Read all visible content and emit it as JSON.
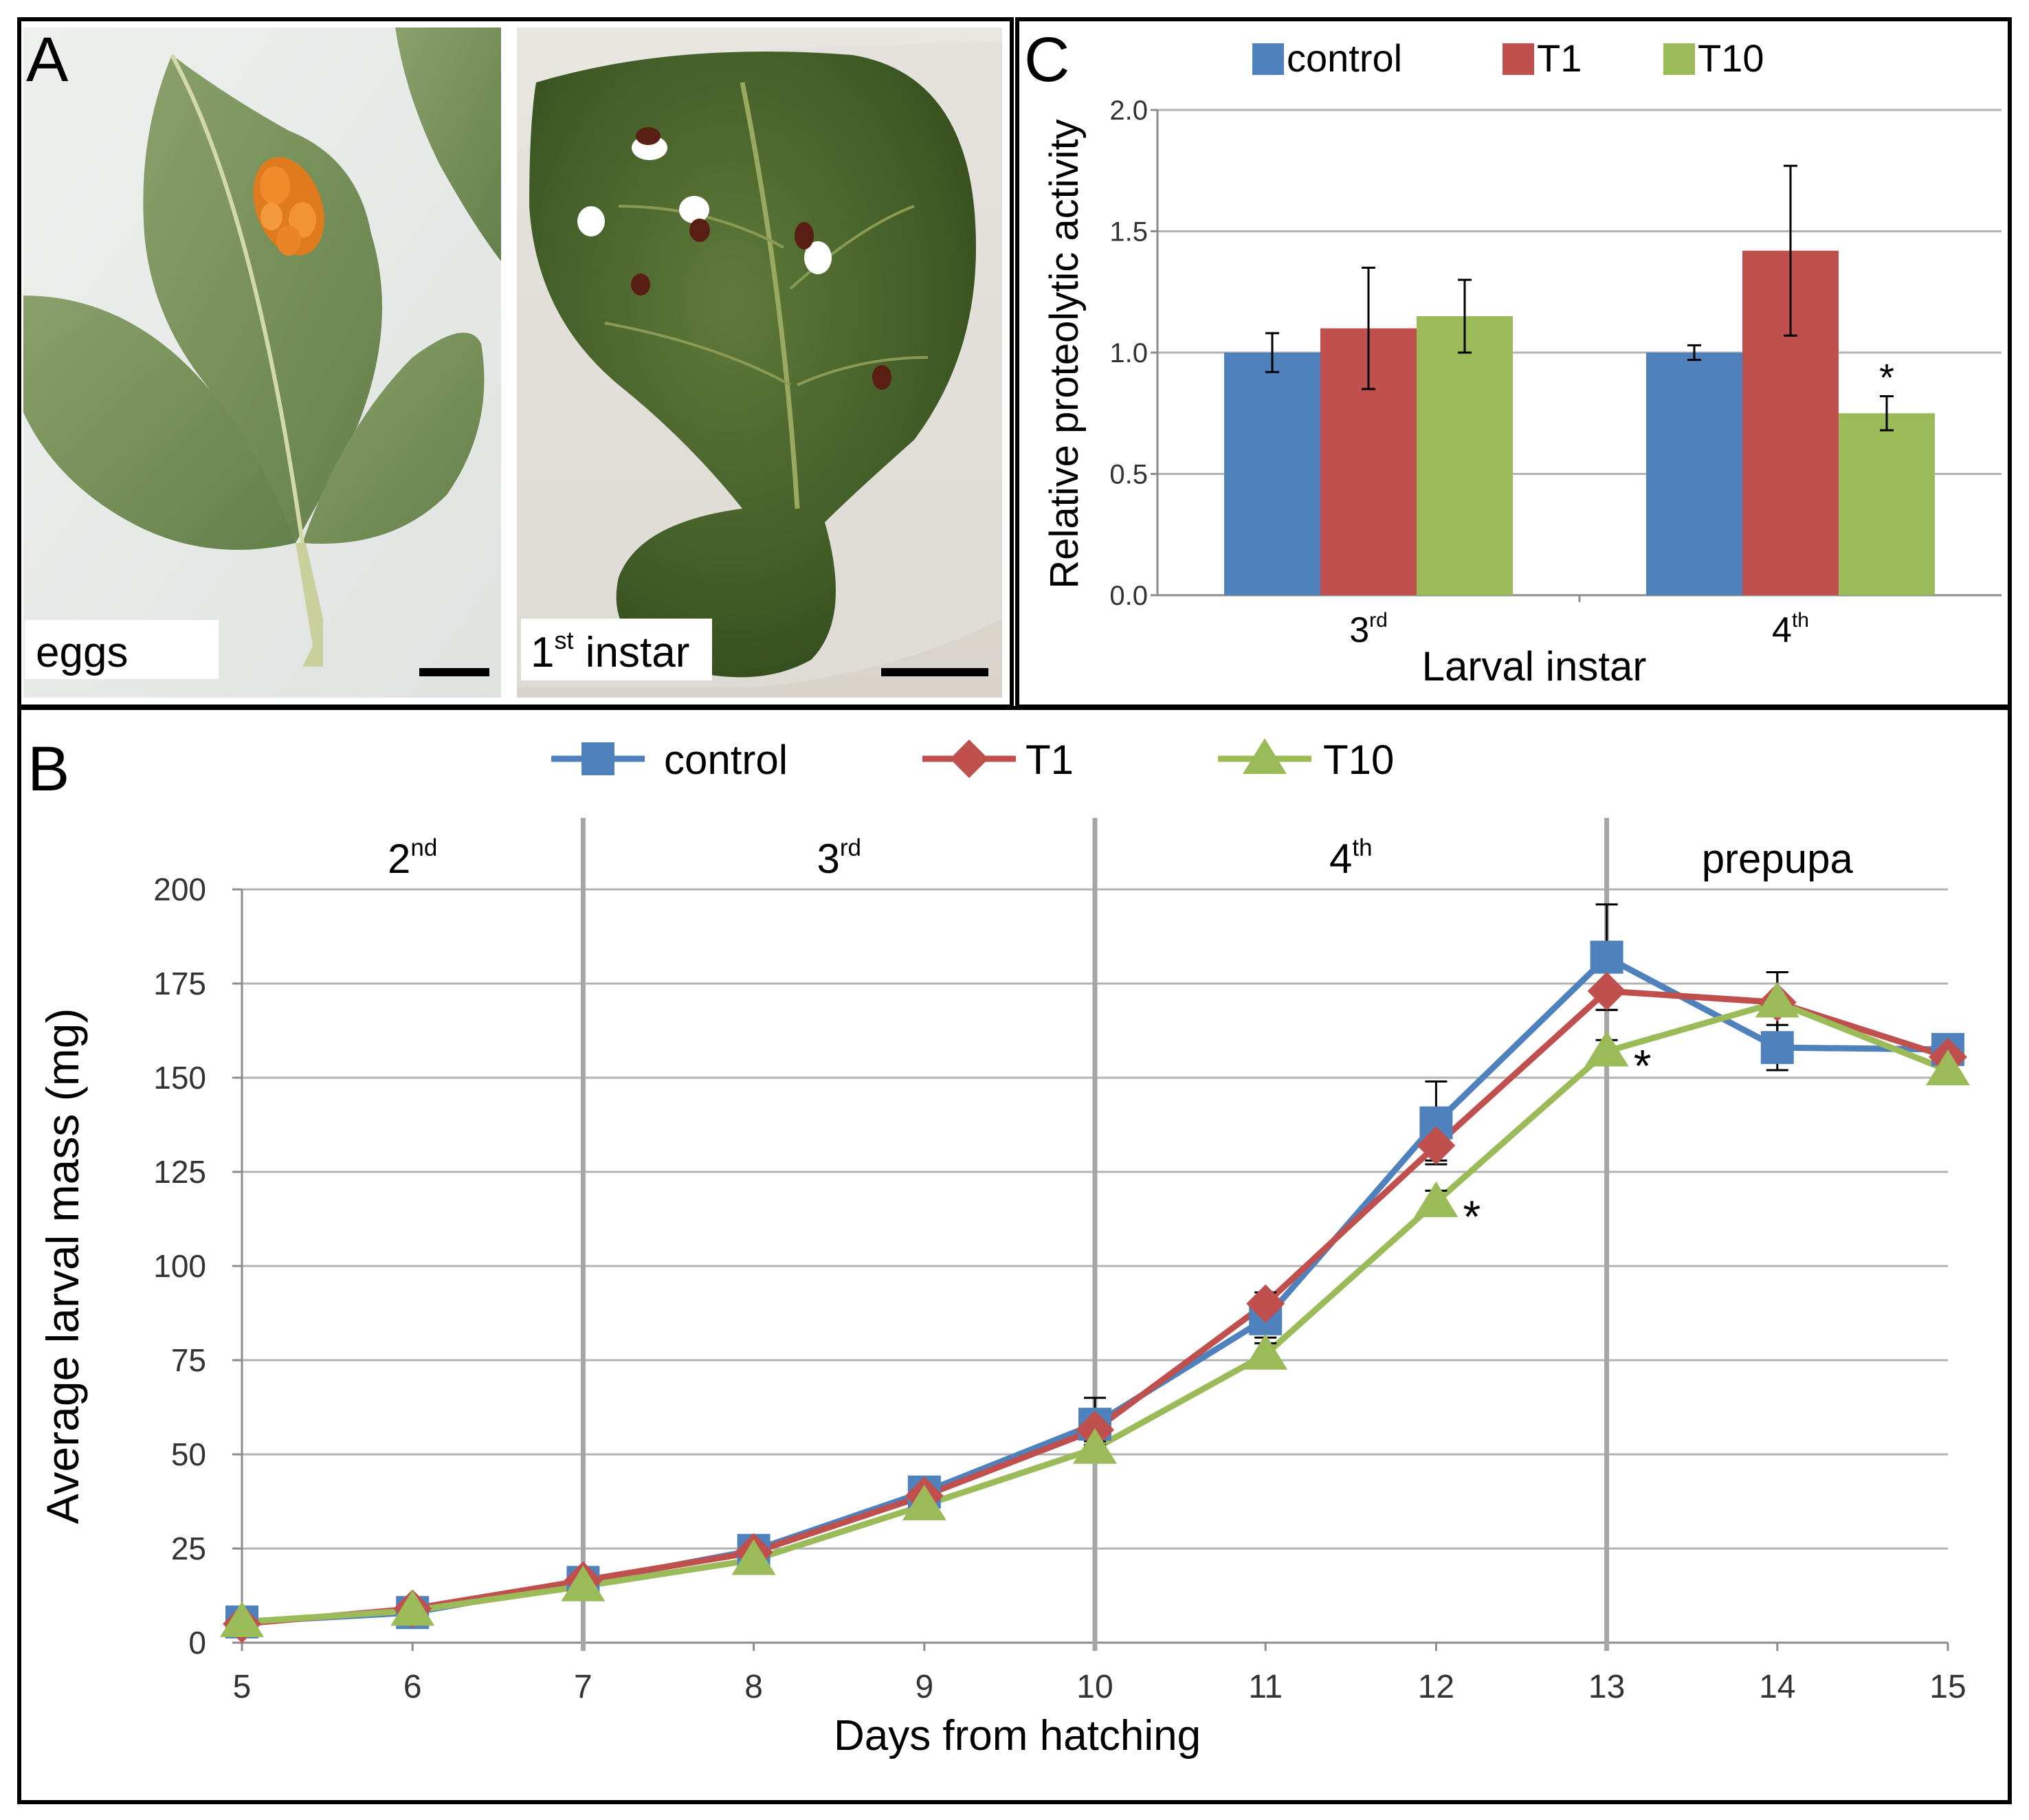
{
  "panels": {
    "a": {
      "letter": "A",
      "left_label": "eggs",
      "right_label_main": "1",
      "right_label_sup": "st",
      "right_label_rest": " instar"
    },
    "b": {
      "letter": "B"
    },
    "c": {
      "letter": "C"
    }
  },
  "colors": {
    "control": "#4f81bd",
    "T1": "#c0504d",
    "T10": "#9bbb59",
    "grid": "#b3b3b3",
    "stage_divider": "#a6a6a6",
    "text": "#000000"
  },
  "chart_data": [
    {
      "id": "panel-c",
      "type": "bar",
      "title": "",
      "xlabel": "Larval instar",
      "ylabel": "Relative proteolytic activity",
      "ylim": [
        0,
        2.0
      ],
      "yticks": [
        "0.0",
        "0.5",
        "1.0",
        "1.5",
        "2.0"
      ],
      "grid": true,
      "legend": "top",
      "categories": [
        {
          "main": "3",
          "sup": "rd"
        },
        {
          "main": "4",
          "sup": "th"
        }
      ],
      "series": [
        {
          "name": "control",
          "values": [
            1.0,
            1.0
          ],
          "errors": [
            0.08,
            0.03
          ]
        },
        {
          "name": "T1",
          "values": [
            1.1,
            1.42
          ],
          "errors": [
            0.25,
            0.35
          ]
        },
        {
          "name": "T10",
          "values": [
            1.15,
            0.75
          ],
          "errors": [
            0.15,
            0.07
          ]
        }
      ],
      "annotations": [
        {
          "text": "*",
          "series": "T10",
          "category_index": 1
        }
      ]
    },
    {
      "id": "panel-b",
      "type": "line",
      "title": "",
      "xlabel": "Days from hatching",
      "ylabel": "Average larval mass (mg)",
      "x": [
        5,
        6,
        7,
        8,
        9,
        10,
        11,
        12,
        13,
        14,
        15
      ],
      "xticks": [
        "5",
        "6",
        "7",
        "8",
        "9",
        "10",
        "11",
        "12",
        "13",
        "14",
        "15"
      ],
      "ylim": [
        0,
        200
      ],
      "yticks": [
        "0",
        "25",
        "50",
        "75",
        "100",
        "125",
        "150",
        "175",
        "200"
      ],
      "grid": true,
      "legend": "top",
      "series": [
        {
          "name": "control",
          "marker": "square",
          "values": [
            5.5,
            8,
            16,
            24.5,
            40,
            58,
            86,
            138,
            182,
            158,
            157.5
          ],
          "errors": [
            0,
            0,
            0,
            0,
            4,
            7,
            5,
            11,
            14,
            6,
            4
          ]
        },
        {
          "name": "T1",
          "marker": "diamond",
          "values": [
            5,
            9,
            16.5,
            24,
            39,
            56.5,
            90,
            132,
            173,
            170,
            155.5
          ],
          "errors": [
            0,
            0,
            0,
            0,
            3,
            4,
            3,
            4,
            5,
            8,
            3
          ]
        },
        {
          "name": "T10",
          "marker": "triangle",
          "values": [
            5.5,
            8.5,
            15,
            22,
            36.5,
            51.5,
            76.5,
            117,
            157,
            170,
            152
          ],
          "errors": [
            0,
            0,
            0,
            0,
            2,
            2,
            3,
            3,
            3,
            8,
            2
          ]
        }
      ],
      "stages": [
        {
          "main": "2",
          "sup": "nd",
          "from": 5,
          "to": 7
        },
        {
          "main": "3",
          "sup": "rd",
          "from": 7,
          "to": 10
        },
        {
          "main": "4",
          "sup": "th",
          "from": 10,
          "to": 13
        },
        {
          "main": "prepupa",
          "sup": "",
          "from": 13,
          "to": 15
        }
      ],
      "stage_boundaries": [
        7,
        10,
        13
      ],
      "annotations": [
        {
          "text": "*",
          "series": "T10",
          "x": 12
        },
        {
          "text": "*",
          "series": "T10",
          "x": 13
        }
      ]
    }
  ]
}
